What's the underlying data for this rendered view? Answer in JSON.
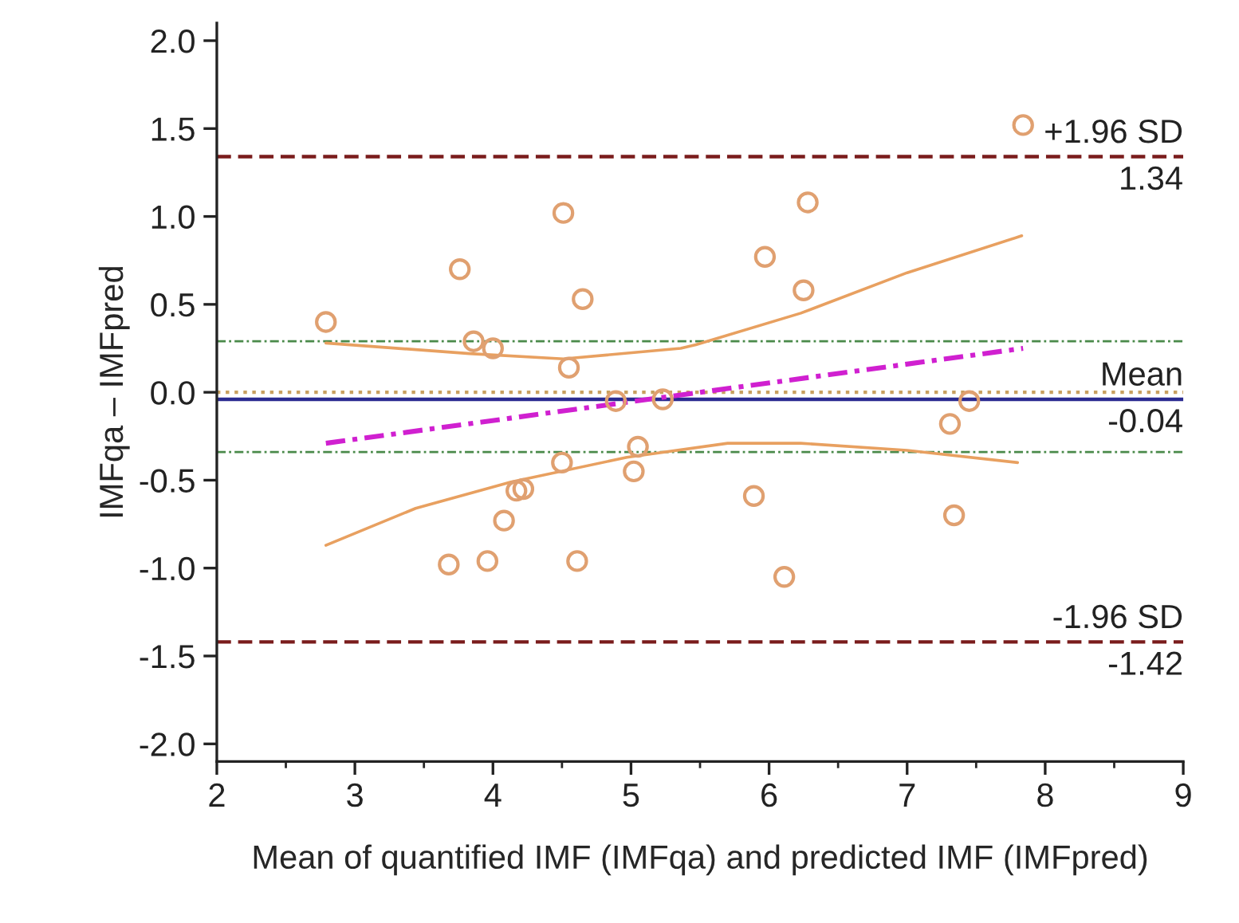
{
  "chart_data": {
    "type": "scatter",
    "xlabel": "Mean of quantified IMF (IMFqa) and predicted IMF (IMFpred)",
    "ylabel": "IMFqa – IMFpred",
    "xlim": [
      2,
      9
    ],
    "ylim": [
      -2.1,
      2.1
    ],
    "xticks": [
      2,
      {
        "value": 2.5,
        "label": null
      },
      3,
      {
        "value": 3.5,
        "label": null
      },
      4,
      {
        "value": 4.5,
        "label": null
      },
      5,
      {
        "value": 5.5,
        "label": null
      },
      6,
      {
        "value": 6.5,
        "label": null
      },
      7,
      {
        "value": 7.5,
        "label": null
      },
      8,
      {
        "value": 8.5,
        "label": null
      },
      9
    ],
    "yticks": [
      {
        "value": -2.0,
        "label": "-2.0"
      },
      {
        "value": -1.5,
        "label": "-1.5"
      },
      {
        "value": -1.0,
        "label": "-1.0"
      },
      {
        "value": -0.5,
        "label": "-0.5"
      },
      {
        "value": 0.0,
        "label": "0.0"
      },
      {
        "value": 0.5,
        "label": "0.5"
      },
      {
        "value": 1.0,
        "label": "1.0"
      },
      {
        "value": 1.5,
        "label": "1.5"
      },
      {
        "value": 2.0,
        "label": "2.0"
      }
    ],
    "grid": false,
    "series": [
      {
        "marker": "circle",
        "color": "#e0a070",
        "x": [
          2.79,
          3.76,
          4.51,
          4.65,
          3.86,
          4.0,
          4.55,
          4.89,
          5.23,
          5.05,
          4.5,
          5.02,
          7.84,
          6.28,
          5.97,
          6.25,
          7.45,
          7.31,
          4.17,
          4.22,
          4.08,
          3.68,
          3.96,
          4.61,
          5.89,
          7.34,
          6.11
        ],
        "values": [
          0.4,
          0.7,
          1.02,
          0.53,
          0.29,
          0.25,
          0.14,
          -0.05,
          -0.04,
          -0.31,
          -0.4,
          -0.45,
          1.52,
          1.08,
          0.77,
          0.58,
          -0.05,
          -0.18,
          -0.56,
          -0.55,
          -0.73,
          -0.98,
          -0.96,
          -0.96,
          -0.59,
          -0.7,
          -1.05
        ]
      },
      {
        "type": "line",
        "line_style": "solid",
        "color": "#e8a060",
        "x": [
          2.79,
          3.83,
          4.51,
          5.36,
          5.47,
          6.23,
          7.0,
          7.83
        ],
        "values": [
          0.28,
          0.22,
          0.19,
          0.25,
          0.27,
          0.45,
          0.68,
          0.89
        ]
      },
      {
        "type": "line",
        "line_style": "solid",
        "color": "#e8a060",
        "x": [
          2.79,
          3.44,
          4.13,
          4.97,
          5.7,
          6.23,
          7.0,
          7.8
        ],
        "values": [
          -0.87,
          -0.66,
          -0.51,
          -0.37,
          -0.29,
          -0.29,
          -0.33,
          -0.4
        ]
      },
      {
        "type": "line",
        "line_style": "dashdot",
        "color": "#d020d0",
        "x": [
          2.79,
          7.84
        ],
        "values": [
          -0.29,
          0.25
        ]
      }
    ],
    "ref_lines": [
      {
        "axis": "y",
        "value": 1.34,
        "label": "+1.96 SD",
        "color": "#7a1c1c",
        "line_style": "dashed"
      },
      {
        "axis": "y",
        "value": -1.42,
        "label": "-1.96 SD",
        "color": "#7a1c1c",
        "line_style": "dashed"
      },
      {
        "axis": "y",
        "value": -0.04,
        "label": "Mean",
        "color": "#2a2a90",
        "line_style": "solid"
      },
      {
        "axis": "y",
        "value": 0.0,
        "color": "#c8a060",
        "line_style": "dotted"
      },
      {
        "axis": "y",
        "value": 0.29,
        "color": "#4a8a4a",
        "line_style": "dashdot"
      },
      {
        "axis": "y",
        "value": -0.34,
        "color": "#4a8a4a",
        "line_style": "dashdot"
      }
    ],
    "annotations": [
      {
        "text": "1.34",
        "y": 1.34
      },
      {
        "text": "-0.04",
        "y": -0.04
      },
      {
        "text": "-1.42",
        "y": -1.42
      }
    ]
  }
}
